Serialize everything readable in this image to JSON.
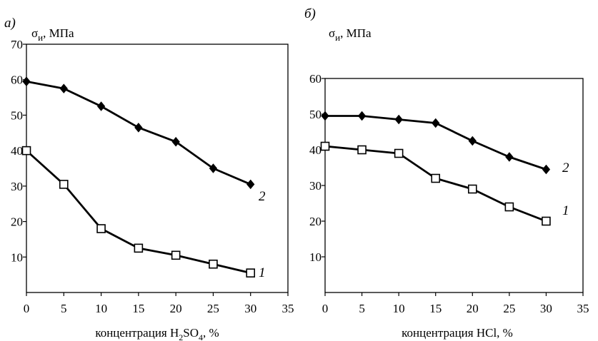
{
  "chart_data": [
    {
      "type": "line",
      "panel_letter": "а)",
      "ylabel_main": "σ",
      "ylabel_sub": "и",
      "ylabel_unit": ", МПа",
      "xlabel_prefix": "концентрация H",
      "xlabel_sub1": "2",
      "xlabel_mid": "SO",
      "xlabel_sub2": "4",
      "xlabel_suffix": ", %",
      "xlim": [
        0,
        35
      ],
      "ylim": [
        0,
        70
      ],
      "x_ticks": [
        "0",
        "5",
        "10",
        "15",
        "20",
        "25",
        "30",
        "35"
      ],
      "y_ticks": [
        "10",
        "20",
        "30",
        "40",
        "50",
        "60",
        "70"
      ],
      "x": [
        0,
        5,
        10,
        15,
        20,
        25,
        30
      ],
      "series": [
        {
          "label": "2",
          "marker": "diamond",
          "values": [
            59.5,
            57.5,
            52.5,
            46.5,
            42.5,
            35,
            30.5
          ]
        },
        {
          "label": "1",
          "marker": "square",
          "values": [
            40,
            30.5,
            18,
            12.5,
            10.5,
            8,
            5.5
          ]
        }
      ]
    },
    {
      "type": "line",
      "panel_letter": "б)",
      "ylabel_main": "σ",
      "ylabel_sub": "и",
      "ylabel_unit": ", МПа",
      "xlabel_prefix": "концентрация HCl, %",
      "xlim": [
        0,
        35
      ],
      "ylim": [
        0,
        60
      ],
      "x_ticks": [
        "0",
        "5",
        "10",
        "15",
        "20",
        "25",
        "30",
        "35"
      ],
      "y_ticks": [
        "10",
        "20",
        "30",
        "40",
        "50",
        "60"
      ],
      "x": [
        0,
        5,
        10,
        15,
        20,
        25,
        30
      ],
      "series": [
        {
          "label": "2",
          "marker": "diamond",
          "values": [
            49.5,
            49.5,
            48.5,
            47.5,
            42.5,
            38,
            34.5
          ]
        },
        {
          "label": "1",
          "marker": "square",
          "values": [
            41,
            40,
            39,
            32,
            29,
            24,
            20
          ]
        }
      ]
    }
  ]
}
